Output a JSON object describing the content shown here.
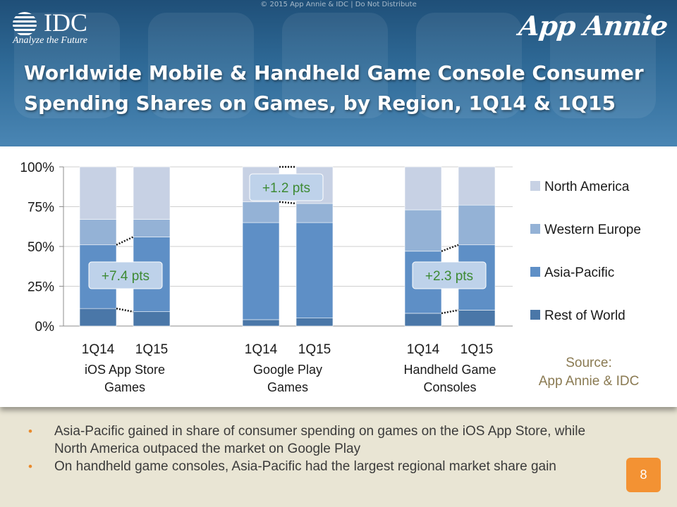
{
  "header": {
    "copyright": "© 2015 App Annie & IDC | Do Not Distribute",
    "idc_logo_text": "IDC",
    "idc_tagline": "Analyze the Future",
    "appannie_logo_text": "App Annie",
    "title_line1": "Worldwide Mobile & Handheld Game Console Consumer",
    "title_line2": "Spending Shares on Games, by Region, 1Q14 & 1Q15"
  },
  "chart_data": {
    "type": "bar",
    "stacked": true,
    "ylim": [
      0,
      100
    ],
    "yticks": [
      "0%",
      "25%",
      "50%",
      "75%",
      "100%"
    ],
    "ytick_values": [
      0,
      25,
      50,
      75,
      100
    ],
    "grid": true,
    "groups": [
      {
        "label_line1": "iOS App Store",
        "label_line2": "Games",
        "bars": [
          "1Q14",
          "1Q15"
        ]
      },
      {
        "label_line1": "Google Play",
        "label_line2": "Games",
        "bars": [
          "1Q14",
          "1Q15"
        ]
      },
      {
        "label_line1": "Handheld Game",
        "label_line2": "Consoles",
        "bars": [
          "1Q14",
          "1Q15"
        ]
      }
    ],
    "categories": [
      "iOS 1Q14",
      "iOS 1Q15",
      "Google Play 1Q14",
      "Google Play 1Q15",
      "Handheld 1Q14",
      "Handheld 1Q15"
    ],
    "series": [
      {
        "name": "Rest of World",
        "color": "#4a77a8",
        "values": [
          11,
          9,
          4,
          5,
          8,
          10
        ]
      },
      {
        "name": "Asia-Pacific",
        "color": "#5e8fc6",
        "values": [
          40,
          47,
          61,
          60,
          39,
          41
        ]
      },
      {
        "name": "Western Europe",
        "color": "#94b2d6",
        "values": [
          16,
          11,
          13,
          12,
          26,
          25
        ]
      },
      {
        "name": "North America",
        "color": "#c7d1e4",
        "values": [
          33,
          33,
          22,
          23,
          27,
          24
        ]
      }
    ],
    "legend_order": [
      "North America",
      "Western Europe",
      "Asia-Pacific",
      "Rest of World"
    ],
    "legend_position": "right",
    "callouts": [
      {
        "text": "+7.4 pts",
        "group": 0,
        "series": "Asia-Pacific"
      },
      {
        "text": "+1.2 pts",
        "group": 1,
        "series": "North America"
      },
      {
        "text": "+2.3 pts",
        "group": 2,
        "series": "Asia-Pacific"
      }
    ],
    "source_line1": "Source:",
    "source_line2": "App Annie & IDC",
    "source_color": "#8a7a52",
    "callout_text_color": "#3d8a33"
  },
  "footer": {
    "bullets": [
      "Asia-Pacific gained in share of consumer spending on games on the iOS App Store, while North America outpaced the market on Google Play",
      "On handheld game consoles, Asia-Pacific had the largest regional market share gain"
    ],
    "bullet_symbol": "•",
    "page_number": "8",
    "accent_color": "#f39233"
  }
}
